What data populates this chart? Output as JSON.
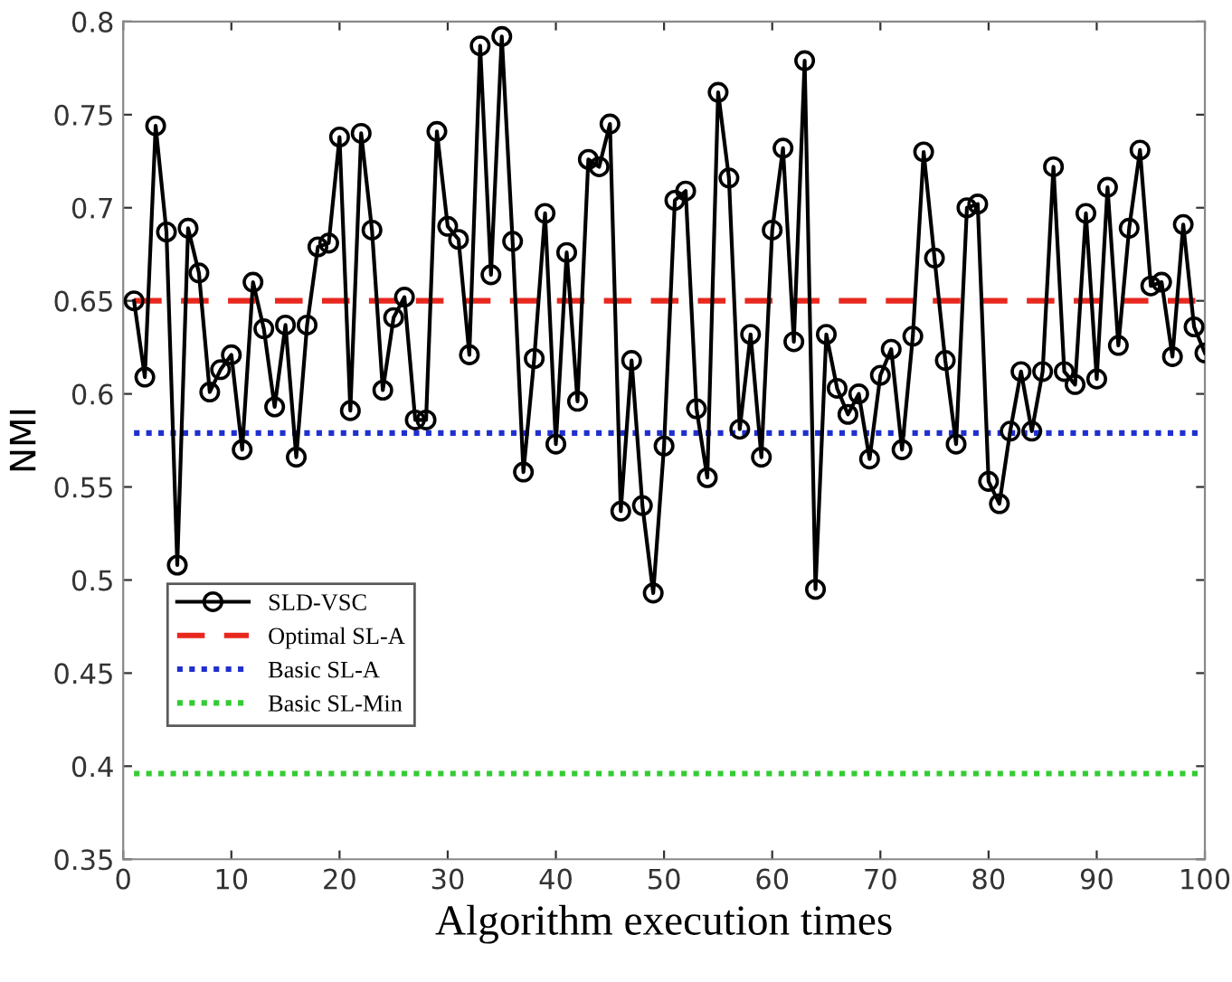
{
  "chart_data": {
    "type": "line",
    "xlabel": "Algorithm execution times",
    "ylabel": "NMI",
    "x": [
      1,
      2,
      3,
      4,
      5,
      6,
      7,
      8,
      9,
      10,
      11,
      12,
      13,
      14,
      15,
      16,
      17,
      18,
      19,
      20,
      21,
      22,
      23,
      24,
      25,
      26,
      27,
      28,
      29,
      30,
      31,
      32,
      33,
      34,
      35,
      36,
      37,
      38,
      39,
      40,
      41,
      42,
      43,
      44,
      45,
      46,
      47,
      48,
      49,
      50,
      51,
      52,
      53,
      54,
      55,
      56,
      57,
      58,
      59,
      60,
      61,
      62,
      63,
      64,
      65,
      66,
      67,
      68,
      69,
      70,
      71,
      72,
      73,
      74,
      75,
      76,
      77,
      78,
      79,
      80,
      81,
      82,
      83,
      84,
      85,
      86,
      87,
      88,
      89,
      90,
      91,
      92,
      93,
      94,
      95,
      96,
      97,
      98,
      99,
      100
    ],
    "series": [
      {
        "name": "SLD-VSC",
        "color": "#000000",
        "values": [
          0.65,
          0.609,
          0.744,
          0.687,
          0.508,
          0.689,
          0.665,
          0.601,
          0.613,
          0.621,
          0.57,
          0.66,
          0.635,
          0.593,
          0.637,
          0.566,
          0.637,
          0.679,
          0.681,
          0.738,
          0.591,
          0.74,
          0.688,
          0.602,
          0.641,
          0.652,
          0.586,
          0.586,
          0.741,
          0.69,
          0.683,
          0.621,
          0.787,
          0.664,
          0.792,
          0.682,
          0.558,
          0.619,
          0.697,
          0.573,
          0.676,
          0.596,
          0.726,
          0.722,
          0.745,
          0.537,
          0.618,
          0.54,
          0.493,
          0.572,
          0.704,
          0.709,
          0.592,
          0.555,
          0.762,
          0.716,
          0.581,
          0.632,
          0.566,
          0.688,
          0.732,
          0.628,
          0.779,
          0.495,
          0.632,
          0.603,
          0.589,
          0.6,
          0.565,
          0.61,
          0.624,
          0.57,
          0.631,
          0.73,
          0.673,
          0.618,
          0.573,
          0.7,
          0.702,
          0.553,
          0.541,
          0.58,
          0.612,
          0.58,
          0.612,
          0.722,
          0.612,
          0.605,
          0.697,
          0.608,
          0.711,
          0.626,
          0.689,
          0.731,
          0.658,
          0.66,
          0.62,
          0.691,
          0.636,
          0.622
        ]
      }
    ],
    "marker": "circle",
    "line_style": "solid",
    "ref_lines": [
      {
        "axis": "y",
        "value": 0.65,
        "label": "Optimal SL-A",
        "color": "#e8281e",
        "line_style": "dashed"
      },
      {
        "axis": "y",
        "value": 0.579,
        "label": "Basic SL-A",
        "color": "#1f2fd0",
        "line_style": "dotted"
      },
      {
        "axis": "y",
        "value": 0.396,
        "label": "Basic SL-Min",
        "color": "#33cc33",
        "line_style": "dotted"
      }
    ],
    "xlim": [
      0,
      100
    ],
    "xticks": [
      0,
      10,
      20,
      30,
      40,
      50,
      60,
      70,
      80,
      90,
      100
    ],
    "ylim": [
      0.35,
      0.8
    ],
    "yticks": [
      0.35,
      0.4,
      0.45,
      0.5,
      0.55,
      0.6,
      0.65,
      0.7,
      0.75,
      0.8
    ],
    "grid": false,
    "legend": "bottom left"
  }
}
